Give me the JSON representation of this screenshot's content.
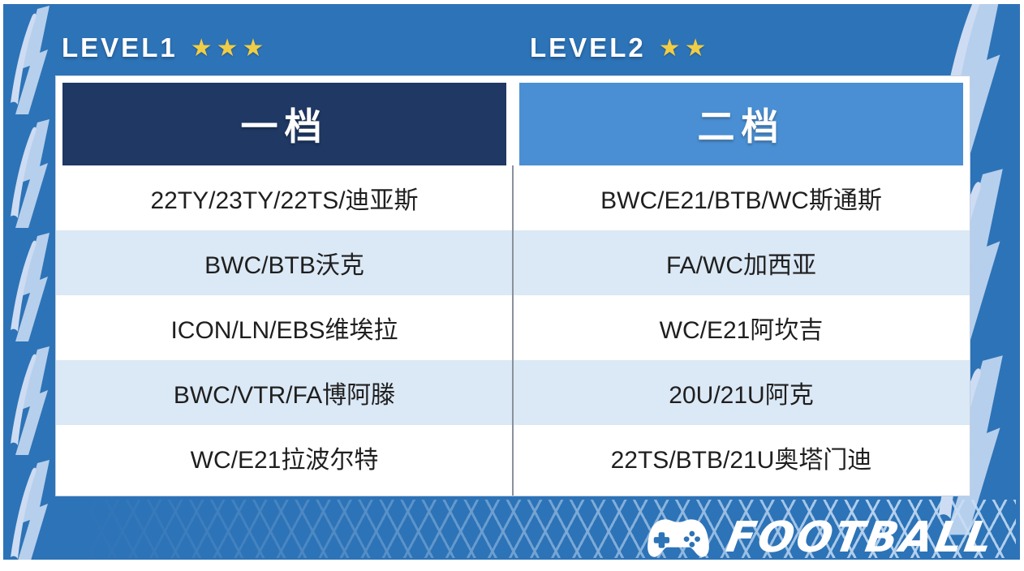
{
  "levels": [
    {
      "label": "LEVEL1",
      "stars": 3,
      "stars_display": "★★★"
    },
    {
      "label": "LEVEL2",
      "stars": 2,
      "stars_display": "★★"
    }
  ],
  "table": {
    "columns": [
      {
        "header": "一档",
        "rows": [
          "22TY/23TY/22TS/迪亚斯",
          "BWC/BTB沃克",
          "ICON/LN/EBS维埃拉",
          "BWC/VTR/FA博阿滕",
          "WC/E21拉波尔特"
        ]
      },
      {
        "header": "二档",
        "rows": [
          "BWC/E21/BTB/WC斯通斯",
          "FA/WC加西亚",
          "WC/E21阿坎吉",
          "20U/21U阿克",
          "22TS/BTB/21U奥塔门迪"
        ]
      }
    ]
  },
  "footer": {
    "brand": "FOOTBALL",
    "icon": "gamepad-icon"
  },
  "chart_data": {
    "type": "table",
    "title": "LEVEL1/LEVEL2 player tier table",
    "columns": [
      "一档",
      "二档"
    ],
    "rows": [
      [
        "22TY/23TY/22TS/迪亚斯",
        "BWC/E21/BTB/WC斯通斯"
      ],
      [
        "BWC/BTB沃克",
        "FA/WC加西亚"
      ],
      [
        "ICON/LN/EBS维埃拉",
        "WC/E21阿坎吉"
      ],
      [
        "BWC/VTR/FA博阿滕",
        "20U/21U阿克"
      ],
      [
        "WC/E21拉波尔特",
        "22TS/BTB/21U奥塔门迪"
      ]
    ],
    "annotations": [
      "LEVEL1 ★★★",
      "LEVEL2 ★★",
      "FOOTBALL"
    ]
  },
  "colors": {
    "background_blue": "#2d73b7",
    "tier1_header_bg": "#1f3864",
    "tier2_header_bg": "#4a8fd3",
    "row_alt_bg": "#dbe8f5",
    "star_yellow": "#f1cd45",
    "text_dark": "#1f1f1f",
    "decoration_light_blue": "#b6cfec"
  }
}
